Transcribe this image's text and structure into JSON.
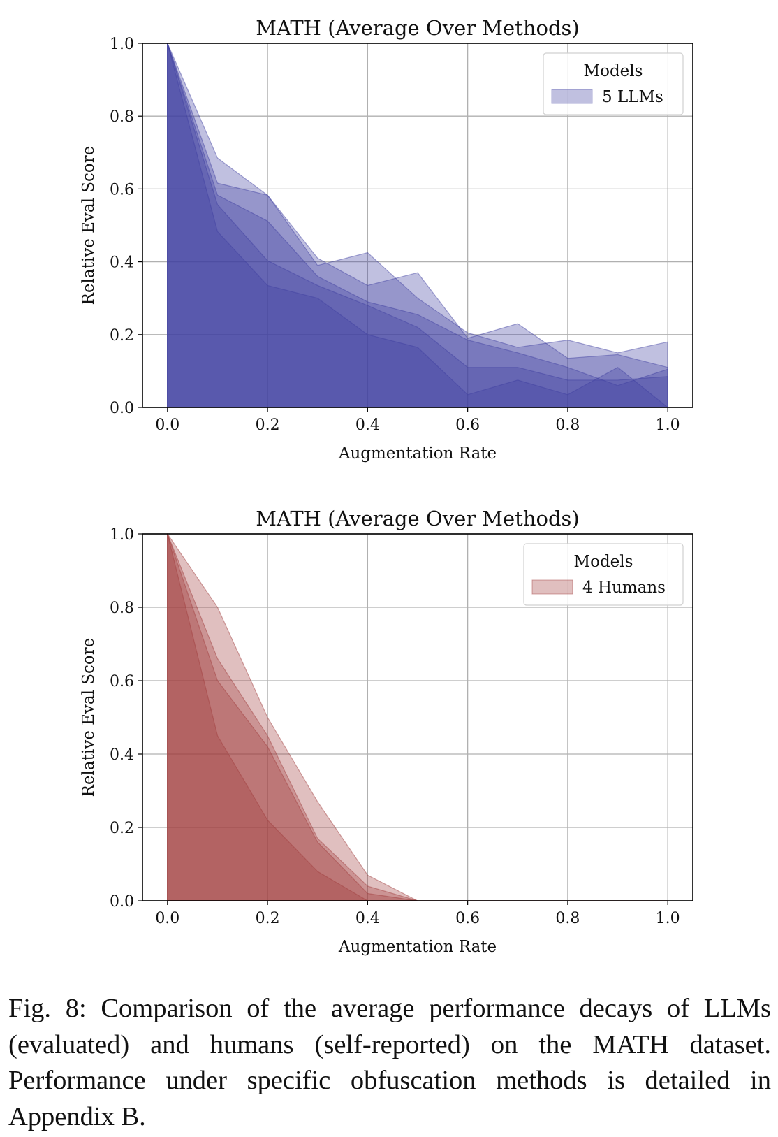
{
  "chart_data": [
    {
      "type": "area",
      "title": "MATH (Average Over Methods)",
      "xlabel": "Augmentation Rate",
      "ylabel": "Relative Eval Score",
      "xlim": [
        -0.05,
        1.05
      ],
      "ylim": [
        0,
        1.0
      ],
      "xticks": [
        "0.0",
        "0.2",
        "0.4",
        "0.6",
        "0.8",
        "1.0"
      ],
      "yticks": [
        "0.0",
        "0.2",
        "0.4",
        "0.6",
        "0.8",
        "1.0"
      ],
      "grid": true,
      "legend": {
        "title": "Models",
        "label": "5 LLMs",
        "placement": "top-right"
      },
      "color": "#3f3fa0",
      "x": [
        0,
        0.1,
        0.2,
        0.3,
        0.4,
        0.5,
        0.6,
        0.7,
        0.8,
        0.9,
        1.0
      ],
      "series": [
        {
          "values": [
            1,
            0.685,
            0.583,
            0.39,
            0.425,
            0.3,
            0.205,
            0.165,
            0.185,
            0.15,
            0.18
          ]
        },
        {
          "values": [
            1,
            0.616,
            0.583,
            0.41,
            0.335,
            0.37,
            0.19,
            0.23,
            0.135,
            0.145,
            0.11
          ]
        },
        {
          "values": [
            1,
            0.583,
            0.512,
            0.36,
            0.29,
            0.255,
            0.185,
            0.15,
            0.11,
            0.06,
            0.105
          ]
        },
        {
          "values": [
            1,
            0.557,
            0.403,
            0.335,
            0.28,
            0.22,
            0.11,
            0.11,
            0.075,
            0.075,
            0.085
          ]
        },
        {
          "values": [
            1,
            0.483,
            0.335,
            0.3,
            0.2,
            0.165,
            0.035,
            0.075,
            0.035,
            0.11,
            0.0
          ]
        }
      ]
    },
    {
      "type": "area",
      "title": "MATH (Average Over Methods)",
      "xlabel": "Augmentation Rate",
      "ylabel": "Relative Eval Score",
      "xlim": [
        -0.05,
        1.05
      ],
      "ylim": [
        0,
        1.0
      ],
      "xticks": [
        "0.0",
        "0.2",
        "0.4",
        "0.6",
        "0.8",
        "1.0"
      ],
      "yticks": [
        "0.0",
        "0.2",
        "0.4",
        "0.6",
        "0.8",
        "1.0"
      ],
      "grid": true,
      "legend": {
        "title": "Models",
        "label": "4 Humans",
        "placement": "top-right"
      },
      "color": "#a03c3c",
      "x": [
        0,
        0.1,
        0.2,
        0.3,
        0.4,
        0.5,
        0.6,
        0.7,
        0.8,
        0.9,
        1.0
      ],
      "series": [
        {
          "values": [
            1,
            0.8,
            0.5,
            0.27,
            0.07,
            0,
            0,
            0,
            0,
            0,
            0
          ]
        },
        {
          "values": [
            1,
            0.66,
            0.45,
            0.17,
            0.04,
            0,
            0,
            0,
            0,
            0,
            0
          ]
        },
        {
          "values": [
            1,
            0.6,
            0.42,
            0.16,
            0.02,
            0,
            0,
            0,
            0,
            0,
            0
          ]
        },
        {
          "values": [
            1,
            0.45,
            0.22,
            0.08,
            0,
            0,
            0,
            0,
            0,
            0,
            0
          ]
        }
      ]
    }
  ],
  "caption": "Fig. 8: Comparison of the average performance decays of LLMs (evaluated) and humans (self-reported) on the MATH dataset. Performance under specific obfuscation methods is detailed in Appendix B."
}
